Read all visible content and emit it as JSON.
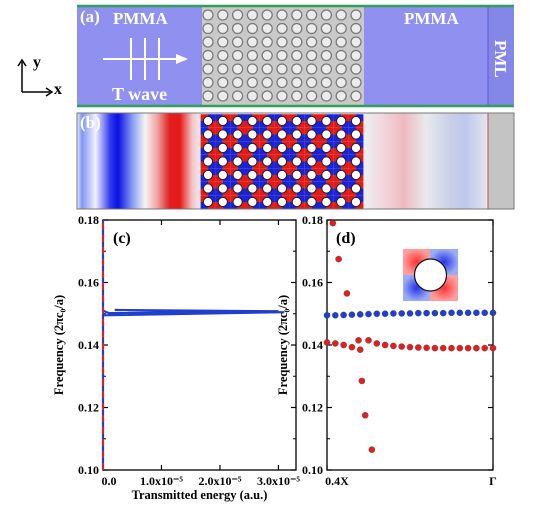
{
  "panel_a": {
    "label": "(a)",
    "left_region": "PMMA",
    "right_region": "PMMA",
    "pml": "PML",
    "wave_label": "T wave",
    "axis_y": "y",
    "axis_x": "x",
    "colors": {
      "pmma": "#8f90f0",
      "crystal": "#c8c8c8",
      "border": "#2fa05a"
    }
  },
  "panel_b": {
    "label": "(b)"
  },
  "chart_data": [
    {
      "panel": "(c)",
      "type": "line",
      "xlabel": "Transmitted energy (a.u.)",
      "ylabel": "Frequency (2πc₀/a)",
      "ylim": [
        0.1,
        0.18
      ],
      "xlim": [
        0,
        3.3e-05
      ],
      "yticks": [
        "0.10",
        "0.12",
        "0.14",
        "0.16",
        "0.18"
      ],
      "xticks": [
        "0.0",
        "1.0x10⁻⁵",
        "2.0x10⁻⁵",
        "3.0x10⁻⁵"
      ],
      "xtick_values": [
        0,
        1e-05,
        2e-05,
        3e-05
      ],
      "series": [
        {
          "color": "#1f3fd0",
          "style": "solid",
          "points": [
            [
              0,
              0.1
            ],
            [
              0,
              0.1495
            ],
            [
              3.1e-05,
              0.1505
            ],
            [
              2e-06,
              0.1512
            ],
            [
              3e-05,
              0.1508
            ],
            [
              1e-06,
              0.1502
            ],
            [
              0,
              0.151
            ],
            [
              0,
              0.18
            ]
          ]
        },
        {
          "color": "#e02020",
          "style": "dashed",
          "points": [
            [
              0,
              0.1
            ],
            [
              0,
              0.18
            ]
          ]
        }
      ]
    },
    {
      "panel": "(d)",
      "type": "scatter",
      "ylabel": "Frequency (2πc₀/a)",
      "ylim": [
        0.1,
        0.18
      ],
      "xlim": [
        0,
        1
      ],
      "yticks": [
        "0.10",
        "0.12",
        "0.14",
        "0.16",
        "0.18"
      ],
      "xticks": [
        "0.4X",
        "Γ"
      ],
      "xtick_values": [
        0,
        1
      ],
      "series": [
        {
          "color": "#1f3fd0",
          "points": [
            [
              0.0,
              0.1495
            ],
            [
              0.05,
              0.1495
            ],
            [
              0.1,
              0.1496
            ],
            [
              0.15,
              0.1497
            ],
            [
              0.2,
              0.1498
            ],
            [
              0.25,
              0.1499
            ],
            [
              0.3,
              0.15
            ],
            [
              0.35,
              0.15
            ],
            [
              0.4,
              0.1501
            ],
            [
              0.45,
              0.1501
            ],
            [
              0.5,
              0.1501
            ],
            [
              0.55,
              0.1502
            ],
            [
              0.6,
              0.1502
            ],
            [
              0.65,
              0.1502
            ],
            [
              0.7,
              0.1502
            ],
            [
              0.75,
              0.1503
            ],
            [
              0.8,
              0.1503
            ],
            [
              0.85,
              0.1503
            ],
            [
              0.9,
              0.1503
            ],
            [
              0.95,
              0.1503
            ],
            [
              1.0,
              0.1503
            ]
          ]
        },
        {
          "color": "#e02020",
          "points": [
            [
              0.0,
              0.1408
            ],
            [
              0.05,
              0.1405
            ],
            [
              0.1,
              0.14
            ],
            [
              0.15,
              0.1393
            ],
            [
              0.2,
              0.1385
            ],
            [
              0.25,
              0.1415
            ],
            [
              0.3,
              0.1405
            ],
            [
              0.35,
              0.14
            ],
            [
              0.4,
              0.1397
            ],
            [
              0.45,
              0.1395
            ],
            [
              0.5,
              0.1393
            ],
            [
              0.55,
              0.1392
            ],
            [
              0.6,
              0.1391
            ],
            [
              0.65,
              0.139
            ],
            [
              0.7,
              0.139
            ],
            [
              0.75,
              0.139
            ],
            [
              0.8,
              0.139
            ],
            [
              0.85,
              0.139
            ],
            [
              0.9,
              0.139
            ],
            [
              0.95,
              0.139
            ],
            [
              1.0,
              0.139
            ]
          ]
        },
        {
          "color": "#e02020",
          "points": [
            [
              0.035,
              0.179
            ],
            [
              0.07,
              0.1675
            ],
            [
              0.12,
              0.1565
            ],
            [
              0.19,
              0.1415
            ],
            [
              0.21,
              0.1285
            ],
            [
              0.23,
              0.1175
            ],
            [
              0.27,
              0.1065
            ]
          ]
        }
      ]
    }
  ]
}
